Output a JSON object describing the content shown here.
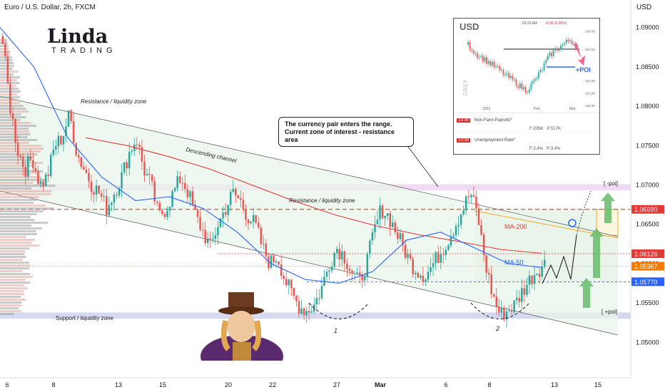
{
  "header": {
    "title": "Euro / U.S. Dollar, 2h, FXCM",
    "currency": "USD"
  },
  "logo": {
    "name": "Linda",
    "sub": "TRADING"
  },
  "colors": {
    "bull": "#26a69a",
    "bear": "#ef5350",
    "ma200": "#e53935",
    "ma50": "#2962ff",
    "channel": "#e8f5e9",
    "zone": "#c5cae9",
    "resist_line": "#e53935",
    "arrow": "#66bb6a"
  },
  "annotations": {
    "resistance_zone_left": "Resistance / liquidity zone",
    "descending_channel": "Descending channel",
    "resistance_zone_mid": "Resistance / liquidity zone",
    "support_zone": "Support / liquidity zone",
    "ma200": "MA-200",
    "ma50": "MA-50",
    "minus_poi": "[ -poi]",
    "plus_poi": "[ +poi]",
    "bottom_1": "1",
    "bottom_2": "2",
    "callout_line1": "The currency pair enters the range.",
    "callout_line2": "Current zone of interest - resistance area"
  },
  "inset": {
    "title": "USD",
    "label": "DAILY",
    "poi_label": "+POI",
    "header_time": "03:22 AM",
    "header_change": "-0.05 (0.05%)",
    "x_ticks": [
      "2023",
      "Feb",
      "Mar"
    ],
    "y_ticks": [
      "106.00",
      "104.54",
      "102.00",
      "101.00",
      "100.00"
    ],
    "events": [
      {
        "time": "13:30",
        "name": "Non-Farm Payrolls*",
        "values": [
          "F:205K",
          "P:517K"
        ]
      },
      {
        "time": "13:30",
        "name": "Unemployment Rate*",
        "values": [
          "F:3.4%",
          "P:3.4%"
        ]
      }
    ]
  },
  "chart_data": {
    "type": "candlestick",
    "x_ticks": [
      "6",
      "8",
      "13",
      "15",
      "20",
      "22",
      "27",
      "Mar",
      "6",
      "8",
      "13",
      "15"
    ],
    "y_ticks": [
      "1.09000",
      "1.08500",
      "1.08000",
      "1.07500",
      "1.07000",
      "1.06500",
      "1.06000",
      "1.05500",
      "1.05000"
    ],
    "ylim": [
      1.0455,
      1.0935
    ],
    "price_labels": [
      {
        "value": 1.0669,
        "text": "1.06690",
        "color": "#e53935"
      },
      {
        "value": 1.06126,
        "text": "1.06126",
        "color": "#e53935"
      },
      {
        "value": 1.05967,
        "text": "1.05967",
        "color": "#f57c00"
      },
      {
        "value": 1.0577,
        "text": "1.05770",
        "color": "#2962ff"
      }
    ],
    "levels": {
      "resistance_zone": [
        1.0693,
        1.0701
      ],
      "support_zone": [
        1.053,
        1.0538
      ],
      "resistance_line": 1.0669,
      "line_61": 1.06126,
      "line_59": 1.05967,
      "line_57": 1.0577
    },
    "closes": [
      1.088,
      1.08,
      1.0745,
      1.072,
      1.0735,
      1.07,
      1.071,
      1.075,
      1.076,
      1.079,
      1.074,
      1.072,
      1.07,
      1.069,
      1.067,
      1.069,
      1.071,
      1.074,
      1.076,
      1.072,
      1.07,
      1.066,
      1.067,
      1.069,
      1.071,
      1.069,
      1.066,
      1.064,
      1.062,
      1.065,
      1.067,
      1.069,
      1.068,
      1.066,
      1.065,
      1.062,
      1.06,
      1.061,
      1.058,
      1.056,
      1.0545,
      1.054,
      1.0548,
      1.057,
      1.06,
      1.062,
      1.061,
      1.059,
      1.0575,
      1.06,
      1.064,
      1.067,
      1.066,
      1.064,
      1.062,
      1.06,
      1.059,
      1.0585,
      1.06,
      1.0615,
      1.063,
      1.065,
      1.067,
      1.069,
      1.066,
      1.06,
      1.056,
      1.0535,
      1.054,
      1.0548,
      1.0565,
      1.058,
      1.0592,
      1.06
    ],
    "ma200": [
      1.076,
      1.075,
      1.0736,
      1.072,
      1.07,
      1.068,
      1.0662,
      1.0648,
      1.0637,
      1.0628,
      1.0618,
      1.0613
    ],
    "ma50": [
      1.09,
      1.085,
      1.076,
      1.071,
      1.068,
      1.0685,
      1.067,
      1.064,
      1.06,
      1.058,
      1.0575,
      1.059,
      1.063,
      1.064,
      1.062,
      1.06,
      1.0595
    ],
    "inset_closes": [
      104.9,
      104.2,
      103.8,
      103.4,
      103.0,
      102.5,
      102.1,
      101.6,
      101.2,
      101.9,
      102.8,
      103.9,
      104.5,
      104.9,
      105.3,
      104.7
    ]
  }
}
